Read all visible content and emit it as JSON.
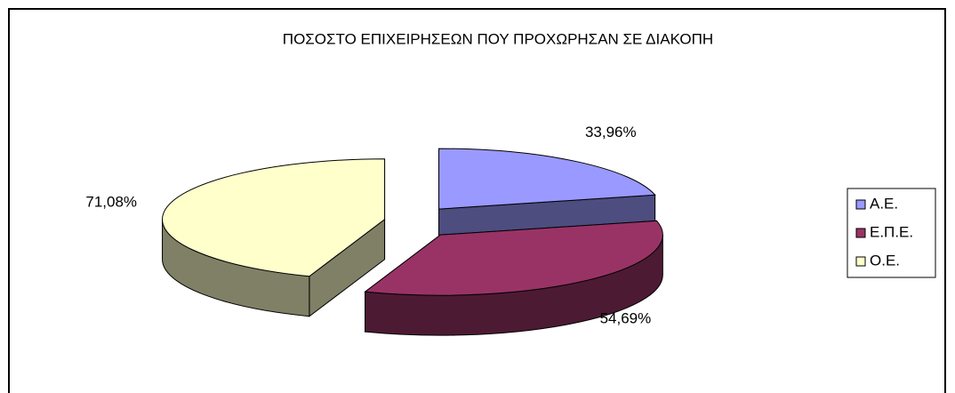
{
  "chart_data": {
    "type": "pie3d",
    "title": "ΠΟΣΟΣΤΟ ΕΠΙΧΕΙΡΗΣΕΩΝ ΠΟΥ ΠΡΟΧΩΡΗΣΑΝ ΣΕ ΔΙΑΚΟΠΗ",
    "categories": [
      "Α.Ε.",
      "Ε.Π.Ε.",
      "Ο.Ε."
    ],
    "values": [
      33.96,
      54.69,
      71.08
    ],
    "value_labels": [
      "33,96%",
      "54,69%",
      "71,08%"
    ],
    "colors": [
      "#9999ff",
      "#993366",
      "#ffffcc"
    ],
    "legend": "right"
  }
}
